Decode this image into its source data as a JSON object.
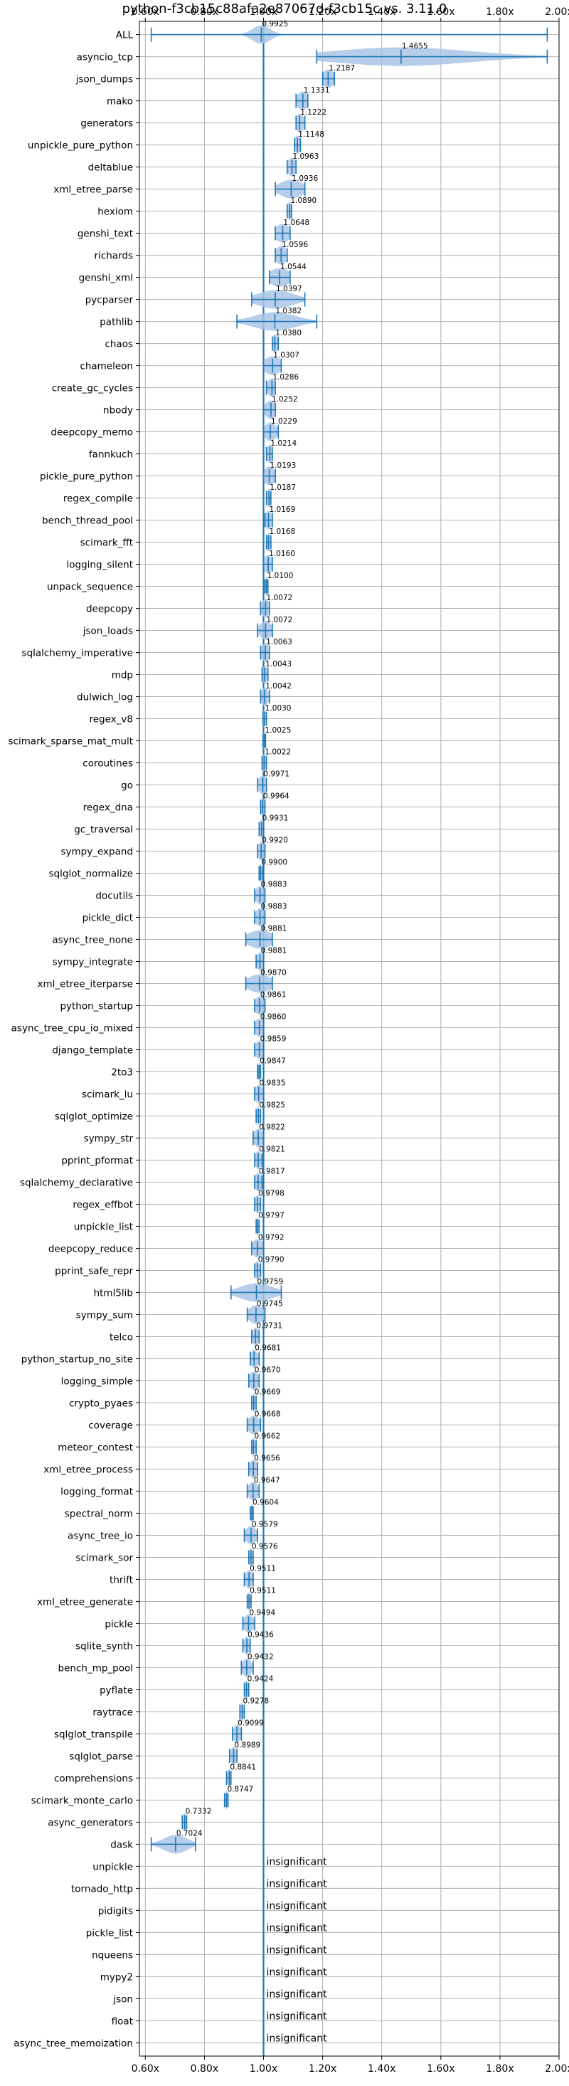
{
  "chart_data": {
    "type": "violin",
    "title": "python-f3cb15c88afa2e87067d-f3cb15c vs. 3.11.0",
    "xlabel": "",
    "ylabel": "",
    "xlim": [
      0.58,
      2.0
    ],
    "xticks": [
      0.6,
      0.8,
      1.0,
      1.2,
      1.4,
      1.6,
      1.8,
      2.0
    ],
    "xtick_labels": [
      "0.60x",
      "0.80x",
      "1.00x",
      "1.20x",
      "1.40x",
      "1.60x",
      "1.80x",
      "2.00x"
    ],
    "grid": true,
    "reference_line": 1.0,
    "colors": {
      "violin": "#a9c6e6",
      "line": "#1f77b4",
      "grid": "#b0b0b0"
    },
    "benchmarks": [
      {
        "name": "ALL",
        "value": 0.9925,
        "label": "0.9925",
        "min": 0.62,
        "max": 1.96,
        "spread": 0.03
      },
      {
        "name": "asyncio_tcp",
        "value": 1.4655,
        "label": "1.4655",
        "min": 1.18,
        "max": 1.96,
        "spread": 0.23
      },
      {
        "name": "json_dumps",
        "value": 1.2187,
        "label": "1.2187",
        "min": 1.2,
        "max": 1.24,
        "spread": 0.02
      },
      {
        "name": "mako",
        "value": 1.1331,
        "label": "1.1331",
        "min": 1.11,
        "max": 1.15,
        "spread": 0.02
      },
      {
        "name": "generators",
        "value": 1.1222,
        "label": "1.1222",
        "min": 1.11,
        "max": 1.14,
        "spread": 0.015
      },
      {
        "name": "unpickle_pure_python",
        "value": 1.1148,
        "label": "1.1148",
        "min": 1.105,
        "max": 1.125,
        "spread": 0.01
      },
      {
        "name": "deltablue",
        "value": 1.0963,
        "label": "1.0963",
        "min": 1.08,
        "max": 1.11,
        "spread": 0.015
      },
      {
        "name": "xml_etree_parse",
        "value": 1.0936,
        "label": "1.0936",
        "min": 1.04,
        "max": 1.14,
        "spread": 0.04
      },
      {
        "name": "hexiom",
        "value": 1.089,
        "label": "1.0890",
        "min": 1.08,
        "max": 1.095,
        "spread": 0.008
      },
      {
        "name": "genshi_text",
        "value": 1.0648,
        "label": "1.0648",
        "min": 1.04,
        "max": 1.09,
        "spread": 0.025
      },
      {
        "name": "richards",
        "value": 1.0596,
        "label": "1.0596",
        "min": 1.04,
        "max": 1.08,
        "spread": 0.02
      },
      {
        "name": "genshi_xml",
        "value": 1.0544,
        "label": "1.0544",
        "min": 1.02,
        "max": 1.09,
        "spread": 0.035
      },
      {
        "name": "pycparser",
        "value": 1.0397,
        "label": "1.0397",
        "min": 0.96,
        "max": 1.14,
        "spread": 0.06
      },
      {
        "name": "pathlib",
        "value": 1.0382,
        "label": "1.0382",
        "min": 0.91,
        "max": 1.18,
        "spread": 0.07
      },
      {
        "name": "chaos",
        "value": 1.038,
        "label": "1.0380",
        "min": 1.03,
        "max": 1.05,
        "spread": 0.01
      },
      {
        "name": "chameleon",
        "value": 1.0307,
        "label": "1.0307",
        "min": 1.0,
        "max": 1.06,
        "spread": 0.03
      },
      {
        "name": "create_gc_cycles",
        "value": 1.0286,
        "label": "1.0286",
        "min": 1.01,
        "max": 1.04,
        "spread": 0.015
      },
      {
        "name": "nbody",
        "value": 1.0252,
        "label": "1.0252",
        "min": 1.0,
        "max": 1.04,
        "spread": 0.02
      },
      {
        "name": "deepcopy_memo",
        "value": 1.0229,
        "label": "1.0229",
        "min": 1.0,
        "max": 1.05,
        "spread": 0.02
      },
      {
        "name": "fannkuch",
        "value": 1.0214,
        "label": "1.0214",
        "min": 1.01,
        "max": 1.03,
        "spread": 0.01
      },
      {
        "name": "pickle_pure_python",
        "value": 1.0193,
        "label": "1.0193",
        "min": 1.0,
        "max": 1.04,
        "spread": 0.02
      },
      {
        "name": "regex_compile",
        "value": 1.0187,
        "label": "1.0187",
        "min": 1.01,
        "max": 1.025,
        "spread": 0.008
      },
      {
        "name": "bench_thread_pool",
        "value": 1.0169,
        "label": "1.0169",
        "min": 1.005,
        "max": 1.03,
        "spread": 0.012
      },
      {
        "name": "scimark_fft",
        "value": 1.0168,
        "label": "1.0168",
        "min": 1.01,
        "max": 1.025,
        "spread": 0.007
      },
      {
        "name": "logging_silent",
        "value": 1.016,
        "label": "1.0160",
        "min": 1.0,
        "max": 1.03,
        "spread": 0.015
      },
      {
        "name": "unpack_sequence",
        "value": 1.01,
        "label": "1.0100",
        "min": 1.005,
        "max": 1.015,
        "spread": 0.005
      },
      {
        "name": "deepcopy",
        "value": 1.0072,
        "label": "1.0072",
        "min": 0.99,
        "max": 1.02,
        "spread": 0.015
      },
      {
        "name": "json_loads",
        "value": 1.0072,
        "label": "1.0072",
        "min": 0.98,
        "max": 1.03,
        "spread": 0.02
      },
      {
        "name": "sqlalchemy_imperative",
        "value": 1.0063,
        "label": "1.0063",
        "min": 0.99,
        "max": 1.02,
        "spread": 0.015
      },
      {
        "name": "mdp",
        "value": 1.0043,
        "label": "1.0043",
        "min": 0.995,
        "max": 1.015,
        "spread": 0.008
      },
      {
        "name": "dulwich_log",
        "value": 1.0042,
        "label": "1.0042",
        "min": 0.99,
        "max": 1.02,
        "spread": 0.012
      },
      {
        "name": "regex_v8",
        "value": 1.003,
        "label": "1.0030",
        "min": 0.998,
        "max": 1.01,
        "spread": 0.005
      },
      {
        "name": "scimark_sparse_mat_mult",
        "value": 1.0025,
        "label": "1.0025",
        "min": 0.998,
        "max": 1.007,
        "spread": 0.004
      },
      {
        "name": "coroutines",
        "value": 1.0022,
        "label": "1.0022",
        "min": 0.995,
        "max": 1.01,
        "spread": 0.006
      },
      {
        "name": "go",
        "value": 0.9971,
        "label": "0.9971",
        "min": 0.98,
        "max": 1.01,
        "spread": 0.015
      },
      {
        "name": "regex_dna",
        "value": 0.9964,
        "label": "0.9964",
        "min": 0.99,
        "max": 1.005,
        "spread": 0.006
      },
      {
        "name": "gc_traversal",
        "value": 0.9931,
        "label": "0.9931",
        "min": 0.985,
        "max": 1.0,
        "spread": 0.007
      },
      {
        "name": "sympy_expand",
        "value": 0.992,
        "label": "0.9920",
        "min": 0.98,
        "max": 1.005,
        "spread": 0.012
      },
      {
        "name": "sqlglot_normalize",
        "value": 0.99,
        "label": "0.9900",
        "min": 0.985,
        "max": 0.997,
        "spread": 0.006
      },
      {
        "name": "docutils",
        "value": 0.9883,
        "label": "0.9883",
        "min": 0.97,
        "max": 1.005,
        "spread": 0.015
      },
      {
        "name": "pickle_dict",
        "value": 0.9883,
        "label": "0.9883",
        "min": 0.97,
        "max": 1.005,
        "spread": 0.015
      },
      {
        "name": "async_tree_none",
        "value": 0.9881,
        "label": "0.9881",
        "min": 0.94,
        "max": 1.03,
        "spread": 0.04
      },
      {
        "name": "sympy_integrate",
        "value": 0.9881,
        "label": "0.9881",
        "min": 0.975,
        "max": 1.0,
        "spread": 0.012
      },
      {
        "name": "xml_etree_iterparse",
        "value": 0.987,
        "label": "0.9870",
        "min": 0.94,
        "max": 1.03,
        "spread": 0.04
      },
      {
        "name": "python_startup",
        "value": 0.9861,
        "label": "0.9861",
        "min": 0.97,
        "max": 1.005,
        "spread": 0.015
      },
      {
        "name": "async_tree_cpu_io_mixed",
        "value": 0.986,
        "label": "0.9860",
        "min": 0.97,
        "max": 1.0,
        "spread": 0.014
      },
      {
        "name": "django_template",
        "value": 0.9859,
        "label": "0.9859",
        "min": 0.97,
        "max": 1.0,
        "spread": 0.013
      },
      {
        "name": "2to3",
        "value": 0.9847,
        "label": "0.9847",
        "min": 0.98,
        "max": 0.99,
        "spread": 0.006
      },
      {
        "name": "scimark_lu",
        "value": 0.9835,
        "label": "0.9835",
        "min": 0.97,
        "max": 1.0,
        "spread": 0.012
      },
      {
        "name": "sqlglot_optimize",
        "value": 0.9825,
        "label": "0.9825",
        "min": 0.975,
        "max": 0.99,
        "spread": 0.007
      },
      {
        "name": "sympy_str",
        "value": 0.9822,
        "label": "0.9822",
        "min": 0.965,
        "max": 1.0,
        "spread": 0.015
      },
      {
        "name": "pprint_pformat",
        "value": 0.9821,
        "label": "0.9821",
        "min": 0.97,
        "max": 0.995,
        "spread": 0.01
      },
      {
        "name": "sqlalchemy_declarative",
        "value": 0.9817,
        "label": "0.9817",
        "min": 0.97,
        "max": 0.995,
        "spread": 0.012
      },
      {
        "name": "regex_effbot",
        "value": 0.9798,
        "label": "0.9798",
        "min": 0.97,
        "max": 0.99,
        "spread": 0.01
      },
      {
        "name": "unpickle_list",
        "value": 0.9797,
        "label": "0.9797",
        "min": 0.975,
        "max": 0.985,
        "spread": 0.005
      },
      {
        "name": "deepcopy_reduce",
        "value": 0.9792,
        "label": "0.9792",
        "min": 0.96,
        "max": 1.0,
        "spread": 0.018
      },
      {
        "name": "pprint_safe_repr",
        "value": 0.979,
        "label": "0.9790",
        "min": 0.97,
        "max": 0.99,
        "spread": 0.01
      },
      {
        "name": "html5lib",
        "value": 0.9759,
        "label": "0.9759",
        "min": 0.89,
        "max": 1.06,
        "spread": 0.055
      },
      {
        "name": "sympy_sum",
        "value": 0.9745,
        "label": "0.9745",
        "min": 0.945,
        "max": 1.005,
        "spread": 0.025
      },
      {
        "name": "telco",
        "value": 0.9731,
        "label": "0.9731",
        "min": 0.96,
        "max": 0.985,
        "spread": 0.01
      },
      {
        "name": "python_startup_no_site",
        "value": 0.9681,
        "label": "0.9681",
        "min": 0.955,
        "max": 0.985,
        "spread": 0.012
      },
      {
        "name": "logging_simple",
        "value": 0.967,
        "label": "0.9670",
        "min": 0.95,
        "max": 0.985,
        "spread": 0.015
      },
      {
        "name": "crypto_pyaes",
        "value": 0.9669,
        "label": "0.9669",
        "min": 0.96,
        "max": 0.975,
        "spread": 0.006
      },
      {
        "name": "coverage",
        "value": 0.9668,
        "label": "0.9668",
        "min": 0.945,
        "max": 0.99,
        "spread": 0.02
      },
      {
        "name": "meteor_contest",
        "value": 0.9662,
        "label": "0.9662",
        "min": 0.96,
        "max": 0.975,
        "spread": 0.006
      },
      {
        "name": "xml_etree_process",
        "value": 0.9656,
        "label": "0.9656",
        "min": 0.95,
        "max": 0.98,
        "spread": 0.013
      },
      {
        "name": "logging_format",
        "value": 0.9647,
        "label": "0.9647",
        "min": 0.945,
        "max": 0.985,
        "spread": 0.016
      },
      {
        "name": "spectral_norm",
        "value": 0.9604,
        "label": "0.9604",
        "min": 0.955,
        "max": 0.965,
        "spread": 0.005
      },
      {
        "name": "async_tree_io",
        "value": 0.9579,
        "label": "0.9579",
        "min": 0.935,
        "max": 0.98,
        "spread": 0.018
      },
      {
        "name": "scimark_sor",
        "value": 0.9576,
        "label": "0.9576",
        "min": 0.95,
        "max": 0.965,
        "spread": 0.006
      },
      {
        "name": "thrift",
        "value": 0.9511,
        "label": "0.9511",
        "min": 0.935,
        "max": 0.965,
        "spread": 0.012
      },
      {
        "name": "xml_etree_generate",
        "value": 0.9511,
        "label": "0.9511",
        "min": 0.945,
        "max": 0.958,
        "spread": 0.006
      },
      {
        "name": "pickle",
        "value": 0.9494,
        "label": "0.9494",
        "min": 0.93,
        "max": 0.97,
        "spread": 0.016
      },
      {
        "name": "sqlite_synth",
        "value": 0.9436,
        "label": "0.9436",
        "min": 0.93,
        "max": 0.955,
        "spread": 0.01
      },
      {
        "name": "bench_mp_pool",
        "value": 0.9432,
        "label": "0.9432",
        "min": 0.925,
        "max": 0.965,
        "spread": 0.015
      },
      {
        "name": "pyflate",
        "value": 0.9424,
        "label": "0.9424",
        "min": 0.935,
        "max": 0.95,
        "spread": 0.006
      },
      {
        "name": "raytrace",
        "value": 0.9278,
        "label": "0.9278",
        "min": 0.92,
        "max": 0.935,
        "spread": 0.006
      },
      {
        "name": "sqlglot_transpile",
        "value": 0.9099,
        "label": "0.9099",
        "min": 0.895,
        "max": 0.925,
        "spread": 0.012
      },
      {
        "name": "sqlglot_parse",
        "value": 0.8989,
        "label": "0.8989",
        "min": 0.885,
        "max": 0.91,
        "spread": 0.01
      },
      {
        "name": "comprehensions",
        "value": 0.8841,
        "label": "0.8841",
        "min": 0.875,
        "max": 0.89,
        "spread": 0.006
      },
      {
        "name": "scimark_monte_carlo",
        "value": 0.8747,
        "label": "0.8747",
        "min": 0.868,
        "max": 0.88,
        "spread": 0.005
      },
      {
        "name": "async_generators",
        "value": 0.7332,
        "label": "0.7332",
        "min": 0.725,
        "max": 0.74,
        "spread": 0.006
      },
      {
        "name": "dask",
        "value": 0.7024,
        "label": "0.7024",
        "min": 0.62,
        "max": 0.77,
        "spread": 0.04
      },
      {
        "name": "unpickle",
        "insignificant": true,
        "label": "insignificant"
      },
      {
        "name": "tornado_http",
        "insignificant": true,
        "label": "insignificant"
      },
      {
        "name": "pidigits",
        "insignificant": true,
        "label": "insignificant"
      },
      {
        "name": "pickle_list",
        "insignificant": true,
        "label": "insignificant"
      },
      {
        "name": "nqueens",
        "insignificant": true,
        "label": "insignificant"
      },
      {
        "name": "mypy2",
        "insignificant": true,
        "label": "insignificant"
      },
      {
        "name": "json",
        "insignificant": true,
        "label": "insignificant"
      },
      {
        "name": "float",
        "insignificant": true,
        "label": "insignificant"
      },
      {
        "name": "async_tree_memoization",
        "insignificant": true,
        "label": "insignificant"
      }
    ]
  }
}
